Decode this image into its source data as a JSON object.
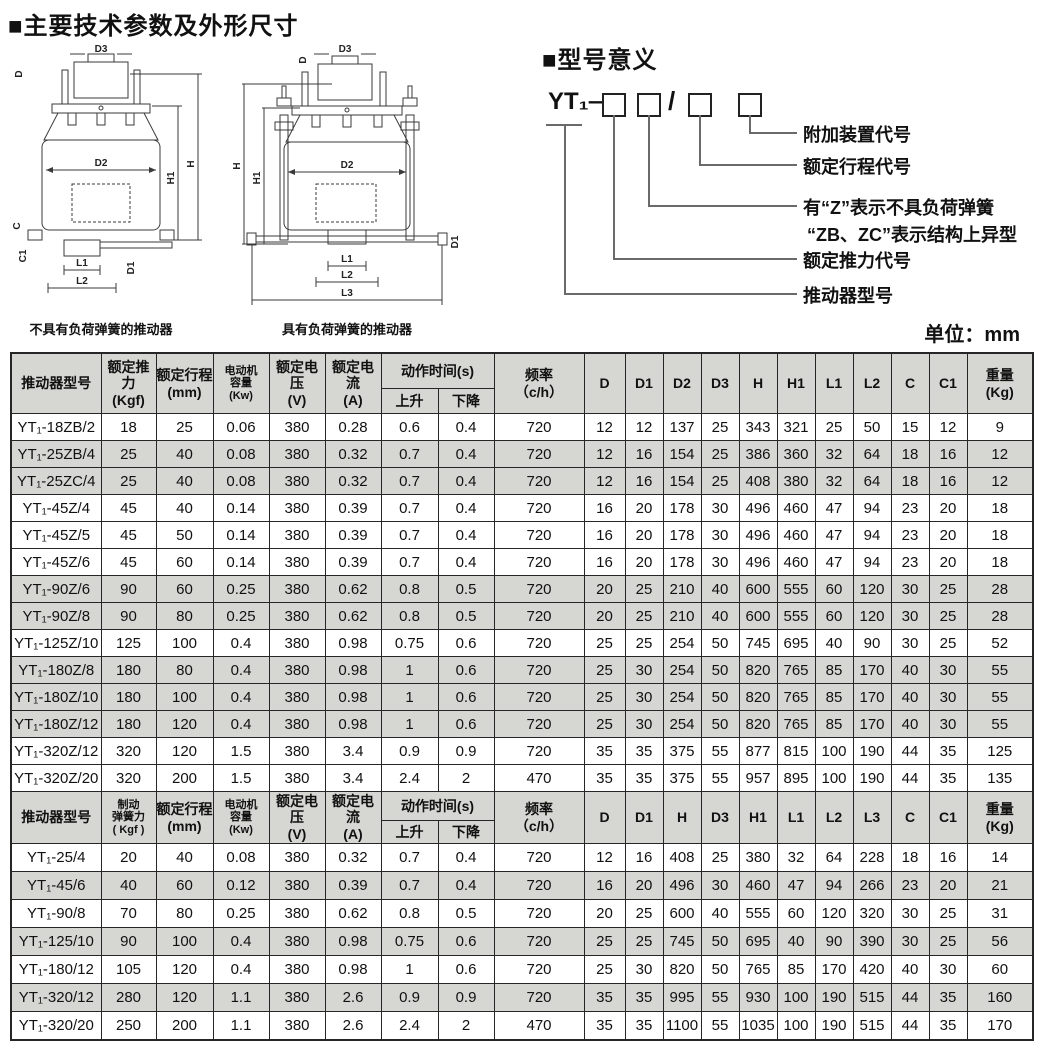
{
  "page": {
    "title": "■主要技术参数及外形尺寸",
    "unit_label": "单位：mm"
  },
  "colors": {
    "header_bg": "#d6d6d2",
    "row_shaded_bg": "#d6d6d2",
    "table_border": "#262626"
  },
  "drawings": {
    "left": {
      "caption": "不具有负荷弹簧的推动器",
      "dims": {
        "d": "D",
        "d3": "D3",
        "d2": "D2",
        "d1": "D1",
        "h": "H",
        "h1": "H1",
        "l1": "L1",
        "l2": "L2",
        "c": "C",
        "c1": "C1"
      }
    },
    "right": {
      "caption": "具有负荷弹簧的推动器",
      "dims": {
        "d": "D",
        "d3": "D3",
        "d2": "D2",
        "d1": "D1",
        "h": "H",
        "h1": "H1",
        "l1": "L1",
        "l2": "L2",
        "l3": "L3"
      }
    }
  },
  "model_meaning": {
    "title": "■型号意义",
    "code_prefix": "YT₁—",
    "slash": "/",
    "labels": [
      "附加装置代号",
      "额定行程代号",
      "有“Z”表示不具负荷弹簧",
      "“ZB、ZC”表示结构上异型",
      "额定推力代号",
      "推动器型号"
    ]
  },
  "table1": {
    "header": {
      "before": [
        {
          "lines": [
            "推动器型号"
          ]
        },
        {
          "lines": [
            "额定推力",
            "(Kgf)"
          ]
        },
        {
          "lines": [
            "额定行程",
            "(mm)"
          ]
        },
        {
          "lines": [
            "电动机",
            "容量",
            "(Kw)"
          ],
          "small": true
        },
        {
          "lines": [
            "额定电压",
            "(V)"
          ]
        },
        {
          "lines": [
            "额定电流",
            "(A)"
          ]
        }
      ],
      "action": {
        "title": "动作时间(s)",
        "sub": [
          "上升",
          "下降"
        ]
      },
      "after": [
        {
          "lines": [
            "频率",
            "（c/h）"
          ]
        },
        {
          "lines": [
            "D"
          ]
        },
        {
          "lines": [
            "D1"
          ]
        },
        {
          "lines": [
            "D2"
          ]
        },
        {
          "lines": [
            "D3"
          ]
        },
        {
          "lines": [
            "H"
          ]
        },
        {
          "lines": [
            "H1"
          ]
        },
        {
          "lines": [
            "L1"
          ]
        },
        {
          "lines": [
            "L2"
          ]
        },
        {
          "lines": [
            "C"
          ]
        },
        {
          "lines": [
            "C1"
          ]
        },
        {
          "lines": [
            "重量",
            "(Kg)"
          ]
        }
      ]
    },
    "rows": [
      {
        "shaded": false,
        "cells": [
          "YT₁-18ZB/2",
          "18",
          "25",
          "0.06",
          "380",
          "0.28",
          "0.6",
          "0.4",
          "720",
          "12",
          "12",
          "137",
          "25",
          "343",
          "321",
          "25",
          "50",
          "15",
          "12",
          "9"
        ]
      },
      {
        "shaded": true,
        "cells": [
          "YT₁-25ZB/4",
          "25",
          "40",
          "0.08",
          "380",
          "0.32",
          "0.7",
          "0.4",
          "720",
          "12",
          "16",
          "154",
          "25",
          "386",
          "360",
          "32",
          "64",
          "18",
          "16",
          "12"
        ]
      },
      {
        "shaded": true,
        "cells": [
          "YT₁-25ZC/4",
          "25",
          "40",
          "0.08",
          "380",
          "0.32",
          "0.7",
          "0.4",
          "720",
          "12",
          "16",
          "154",
          "25",
          "408",
          "380",
          "32",
          "64",
          "18",
          "16",
          "12"
        ]
      },
      {
        "shaded": false,
        "cells": [
          "YT₁-45Z/4",
          "45",
          "40",
          "0.14",
          "380",
          "0.39",
          "0.7",
          "0.4",
          "720",
          "16",
          "20",
          "178",
          "30",
          "496",
          "460",
          "47",
          "94",
          "23",
          "20",
          "18"
        ]
      },
      {
        "shaded": false,
        "cells": [
          "YT₁-45Z/5",
          "45",
          "50",
          "0.14",
          "380",
          "0.39",
          "0.7",
          "0.4",
          "720",
          "16",
          "20",
          "178",
          "30",
          "496",
          "460",
          "47",
          "94",
          "23",
          "20",
          "18"
        ]
      },
      {
        "shaded": false,
        "cells": [
          "YT₁-45Z/6",
          "45",
          "60",
          "0.14",
          "380",
          "0.39",
          "0.7",
          "0.4",
          "720",
          "16",
          "20",
          "178",
          "30",
          "496",
          "460",
          "47",
          "94",
          "23",
          "20",
          "18"
        ]
      },
      {
        "shaded": true,
        "cells": [
          "YT₁-90Z/6",
          "90",
          "60",
          "0.25",
          "380",
          "0.62",
          "0.8",
          "0.5",
          "720",
          "20",
          "25",
          "210",
          "40",
          "600",
          "555",
          "60",
          "120",
          "30",
          "25",
          "28"
        ]
      },
      {
        "shaded": true,
        "cells": [
          "YT₁-90Z/8",
          "90",
          "80",
          "0.25",
          "380",
          "0.62",
          "0.8",
          "0.5",
          "720",
          "20",
          "25",
          "210",
          "40",
          "600",
          "555",
          "60",
          "120",
          "30",
          "25",
          "28"
        ]
      },
      {
        "shaded": false,
        "cells": [
          "YT₁-125Z/10",
          "125",
          "100",
          "0.4",
          "380",
          "0.98",
          "0.75",
          "0.6",
          "720",
          "25",
          "25",
          "254",
          "50",
          "745",
          "695",
          "40",
          "90",
          "30",
          "25",
          "52"
        ]
      },
      {
        "shaded": true,
        "cells": [
          "YT₁-180Z/8",
          "180",
          "80",
          "0.4",
          "380",
          "0.98",
          "1",
          "0.6",
          "720",
          "25",
          "30",
          "254",
          "50",
          "820",
          "765",
          "85",
          "170",
          "40",
          "30",
          "55"
        ]
      },
      {
        "shaded": true,
        "cells": [
          "YT₁-180Z/10",
          "180",
          "100",
          "0.4",
          "380",
          "0.98",
          "1",
          "0.6",
          "720",
          "25",
          "30",
          "254",
          "50",
          "820",
          "765",
          "85",
          "170",
          "40",
          "30",
          "55"
        ]
      },
      {
        "shaded": true,
        "cells": [
          "YT₁-180Z/12",
          "180",
          "120",
          "0.4",
          "380",
          "0.98",
          "1",
          "0.6",
          "720",
          "25",
          "30",
          "254",
          "50",
          "820",
          "765",
          "85",
          "170",
          "40",
          "30",
          "55"
        ]
      },
      {
        "shaded": false,
        "cells": [
          "YT₁-320Z/12",
          "320",
          "120",
          "1.5",
          "380",
          "3.4",
          "0.9",
          "0.9",
          "720",
          "35",
          "35",
          "375",
          "55",
          "877",
          "815",
          "100",
          "190",
          "44",
          "35",
          "125"
        ]
      },
      {
        "shaded": false,
        "cells": [
          "YT₁-320Z/20",
          "320",
          "200",
          "1.5",
          "380",
          "3.4",
          "2.4",
          "2",
          "470",
          "35",
          "35",
          "375",
          "55",
          "957",
          "895",
          "100",
          "190",
          "44",
          "35",
          "135"
        ]
      }
    ]
  },
  "table2": {
    "header": {
      "before": [
        {
          "lines": [
            "推动器型号"
          ]
        },
        {
          "lines": [
            "制动",
            "弹簧力",
            "( Kgf )"
          ],
          "small": true
        },
        {
          "lines": [
            "额定行程",
            "(mm)"
          ]
        },
        {
          "lines": [
            "电动机",
            "容量",
            "(Kw)"
          ],
          "small": true
        },
        {
          "lines": [
            "额定电压",
            "(V)"
          ]
        },
        {
          "lines": [
            "额定电流",
            "(A)"
          ]
        }
      ],
      "action": {
        "title": "动作时间(s)",
        "sub": [
          "上升",
          "下降"
        ]
      },
      "after": [
        {
          "lines": [
            "频率",
            "（c/h）"
          ]
        },
        {
          "lines": [
            "D"
          ]
        },
        {
          "lines": [
            "D1"
          ]
        },
        {
          "lines": [
            "H"
          ]
        },
        {
          "lines": [
            "D3"
          ]
        },
        {
          "lines": [
            "H1"
          ]
        },
        {
          "lines": [
            "L1"
          ]
        },
        {
          "lines": [
            "L2"
          ]
        },
        {
          "lines": [
            "L3"
          ]
        },
        {
          "lines": [
            "C"
          ]
        },
        {
          "lines": [
            "C1"
          ]
        },
        {
          "lines": [
            "重量",
            "(Kg)"
          ]
        }
      ]
    },
    "rows": [
      {
        "shaded": false,
        "cells": [
          "YT₁-25/4",
          "20",
          "40",
          "0.08",
          "380",
          "0.32",
          "0.7",
          "0.4",
          "720",
          "12",
          "16",
          "408",
          "25",
          "380",
          "32",
          "64",
          "228",
          "18",
          "16",
          "14"
        ]
      },
      {
        "shaded": true,
        "cells": [
          "YT₁-45/6",
          "40",
          "60",
          "0.12",
          "380",
          "0.39",
          "0.7",
          "0.4",
          "720",
          "16",
          "20",
          "496",
          "30",
          "460",
          "47",
          "94",
          "266",
          "23",
          "20",
          "21"
        ]
      },
      {
        "shaded": false,
        "cells": [
          "YT₁-90/8",
          "70",
          "80",
          "0.25",
          "380",
          "0.62",
          "0.8",
          "0.5",
          "720",
          "20",
          "25",
          "600",
          "40",
          "555",
          "60",
          "120",
          "320",
          "30",
          "25",
          "31"
        ]
      },
      {
        "shaded": true,
        "cells": [
          "YT₁-125/10",
          "90",
          "100",
          "0.4",
          "380",
          "0.98",
          "0.75",
          "0.6",
          "720",
          "25",
          "25",
          "745",
          "50",
          "695",
          "40",
          "90",
          "390",
          "30",
          "25",
          "56"
        ]
      },
      {
        "shaded": false,
        "cells": [
          "YT₁-180/12",
          "105",
          "120",
          "0.4",
          "380",
          "0.98",
          "1",
          "0.6",
          "720",
          "25",
          "30",
          "820",
          "50",
          "765",
          "85",
          "170",
          "420",
          "40",
          "30",
          "60"
        ]
      },
      {
        "shaded": true,
        "cells": [
          "YT₁-320/12",
          "280",
          "120",
          "1.1",
          "380",
          "2.6",
          "0.9",
          "0.9",
          "720",
          "35",
          "35",
          "995",
          "55",
          "930",
          "100",
          "190",
          "515",
          "44",
          "35",
          "160"
        ]
      },
      {
        "shaded": false,
        "cells": [
          "YT₁-320/20",
          "250",
          "200",
          "1.1",
          "380",
          "2.6",
          "2.4",
          "2",
          "470",
          "35",
          "35",
          "1100",
          "55",
          "1035",
          "100",
          "190",
          "515",
          "44",
          "35",
          "170"
        ]
      }
    ]
  }
}
